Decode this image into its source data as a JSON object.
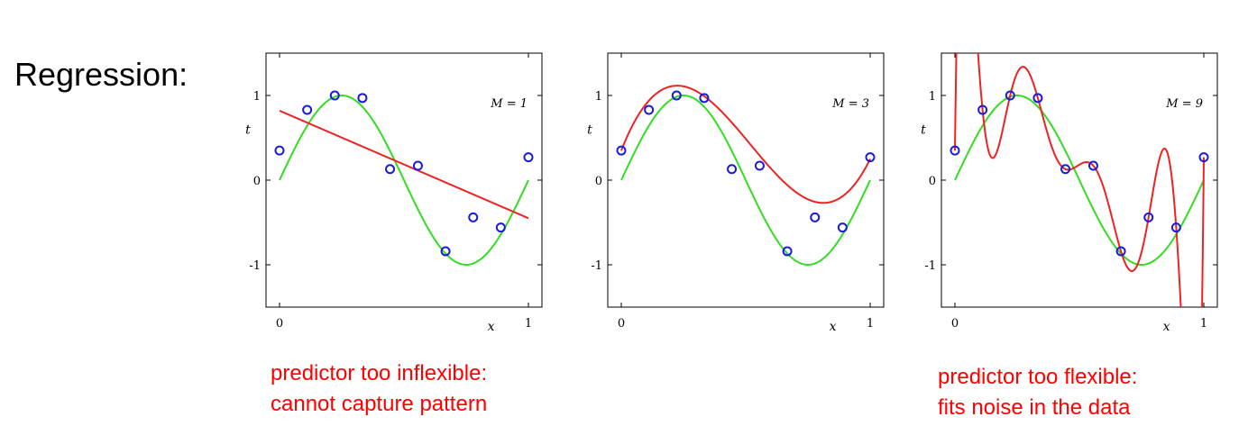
{
  "title": "Regression:",
  "captions": {
    "left": [
      "predictor too inflexible:",
      "cannot capture pattern"
    ],
    "right": [
      "predictor too flexible:",
      "fits noise in the data"
    ]
  },
  "colors": {
    "true_curve": "#33dd22",
    "fit_curve": "#ee2222",
    "points": "#1a1adb",
    "caption": "#ff0000"
  },
  "chart_data": [
    {
      "type": "line",
      "label": "M = 1",
      "xlabel": "x",
      "ylabel": "t",
      "xlim": [
        0,
        1
      ],
      "ylim": [
        -1.5,
        1.5
      ],
      "xticks": [
        0,
        1
      ],
      "yticks": [
        1,
        0,
        -1
      ],
      "points": {
        "x": [
          0,
          0.111,
          0.222,
          0.333,
          0.444,
          0.556,
          0.667,
          0.778,
          0.889,
          1.0
        ],
        "y": [
          0.35,
          0.83,
          1.0,
          0.97,
          0.13,
          0.17,
          -0.84,
          -0.44,
          -0.56,
          0.27
        ]
      },
      "fit_coeffs": [
        0.82,
        -1.27
      ]
    },
    {
      "type": "line",
      "label": "M = 3",
      "xlabel": "x",
      "ylabel": "t",
      "xlim": [
        0,
        1
      ],
      "ylim": [
        -1.5,
        1.5
      ],
      "xticks": [
        0,
        1
      ],
      "yticks": [
        1,
        0,
        -1
      ],
      "points": {
        "x": [
          0,
          0.111,
          0.222,
          0.333,
          0.444,
          0.556,
          0.667,
          0.778,
          0.889,
          1.0
        ],
        "y": [
          0.35,
          0.83,
          1.0,
          0.97,
          0.13,
          0.17,
          -0.84,
          -0.44,
          -0.56,
          0.27
        ]
      },
      "fit_coeffs": [
        0.35,
        7.5,
        -21.3,
        13.7
      ]
    },
    {
      "type": "line",
      "label": "M = 9",
      "xlabel": "x",
      "ylabel": "t",
      "xlim": [
        0,
        1
      ],
      "ylim": [
        -1.5,
        1.5
      ],
      "xticks": [
        0,
        1
      ],
      "yticks": [
        1,
        0,
        -1
      ],
      "points": {
        "x": [
          0,
          0.111,
          0.222,
          0.333,
          0.444,
          0.556,
          0.667,
          0.778,
          0.889,
          1.0
        ],
        "y": [
          0.35,
          0.83,
          1.0,
          0.97,
          0.13,
          0.17,
          -0.84,
          -0.44,
          -0.56,
          0.27
        ]
      },
      "fit": "interpolating"
    }
  ]
}
